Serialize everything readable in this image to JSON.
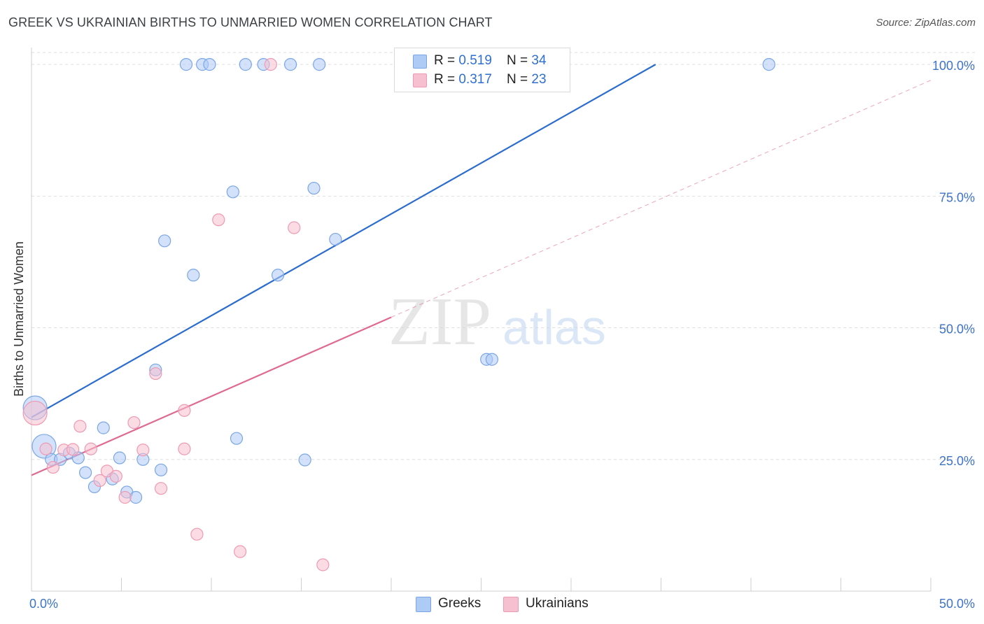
{
  "header": {
    "title": "GREEK VS UKRAINIAN BIRTHS TO UNMARRIED WOMEN CORRELATION CHART",
    "source": "Source: ZipAtlas.com"
  },
  "legend": {
    "greeks": {
      "r_label": "R = ",
      "r_value": "0.519",
      "n_label": "N = ",
      "n_value": "34"
    },
    "ukrainians": {
      "r_label": "R = ",
      "r_value": "0.317",
      "n_label": "N = ",
      "n_value": "23"
    }
  },
  "watermark": {
    "zip": "ZIP",
    "atlas": "atlas"
  },
  "colors": {
    "greeks_fill": "#aecbf5",
    "greeks_stroke": "#7aa6e6",
    "greeks_line": "#2b6ccf",
    "ukrainians_fill": "#f7c0d0",
    "ukrainians_stroke": "#ee9ab2",
    "ukrainians_line": "#e0698f",
    "axis_text": "#3d73c9",
    "grid": "#dedede"
  },
  "chart_data": {
    "type": "scatter",
    "title": "GREEK VS UKRAINIAN BIRTHS TO UNMARRIED WOMEN CORRELATION CHART",
    "xlabel": "",
    "ylabel": "Births to Unmarried Women",
    "xlim": [
      0,
      50
    ],
    "ylim": [
      0,
      104
    ],
    "x_tick_labels": [
      "0.0%",
      "50.0%"
    ],
    "y_ticks": [
      25,
      50,
      75,
      100
    ],
    "y_tick_labels": [
      "25.0%",
      "50.0%",
      "75.0%",
      "100.0%"
    ],
    "legend_position": "top-center",
    "series": [
      {
        "name": "Greeks",
        "r": 0.519,
        "n": 34,
        "points": [
          {
            "x": 0.2,
            "y": 34.8,
            "big": true
          },
          {
            "x": 0.7,
            "y": 27.5,
            "big": true
          },
          {
            "x": 1.1,
            "y": 25.0
          },
          {
            "x": 1.6,
            "y": 25.0
          },
          {
            "x": 2.1,
            "y": 26.2
          },
          {
            "x": 2.6,
            "y": 25.3
          },
          {
            "x": 3.0,
            "y": 22.5
          },
          {
            "x": 3.5,
            "y": 19.8
          },
          {
            "x": 4.0,
            "y": 31.0
          },
          {
            "x": 4.5,
            "y": 21.3
          },
          {
            "x": 4.9,
            "y": 25.3
          },
          {
            "x": 5.3,
            "y": 18.8
          },
          {
            "x": 5.8,
            "y": 17.8
          },
          {
            "x": 6.2,
            "y": 25.0
          },
          {
            "x": 6.9,
            "y": 42.0
          },
          {
            "x": 7.2,
            "y": 23.0
          },
          {
            "x": 7.4,
            "y": 66.5
          },
          {
            "x": 8.6,
            "y": 100.0
          },
          {
            "x": 9.0,
            "y": 60.0
          },
          {
            "x": 9.5,
            "y": 100.0
          },
          {
            "x": 9.9,
            "y": 100.0
          },
          {
            "x": 11.2,
            "y": 75.8
          },
          {
            "x": 11.4,
            "y": 29.0
          },
          {
            "x": 11.9,
            "y": 100.0
          },
          {
            "x": 12.9,
            "y": 100.0
          },
          {
            "x": 13.7,
            "y": 60.0
          },
          {
            "x": 14.4,
            "y": 100.0
          },
          {
            "x": 15.2,
            "y": 24.9
          },
          {
            "x": 15.7,
            "y": 76.5
          },
          {
            "x": 16.0,
            "y": 100.0
          },
          {
            "x": 16.9,
            "y": 66.8
          },
          {
            "x": 25.3,
            "y": 44.0
          },
          {
            "x": 25.6,
            "y": 44.0
          },
          {
            "x": 41.0,
            "y": 100.0
          }
        ],
        "trend": {
          "x0": 0,
          "y0": 33,
          "x1": 34.7,
          "y1": 100
        }
      },
      {
        "name": "Ukrainians",
        "r": 0.317,
        "n": 23,
        "points": [
          {
            "x": 0.2,
            "y": 33.8,
            "big": true
          },
          {
            "x": 0.8,
            "y": 27.0
          },
          {
            "x": 1.2,
            "y": 23.5
          },
          {
            "x": 1.8,
            "y": 26.8
          },
          {
            "x": 2.3,
            "y": 26.9
          },
          {
            "x": 2.7,
            "y": 31.3
          },
          {
            "x": 3.3,
            "y": 27.0
          },
          {
            "x": 3.8,
            "y": 21.0
          },
          {
            "x": 4.2,
            "y": 22.8
          },
          {
            "x": 4.7,
            "y": 21.8
          },
          {
            "x": 5.2,
            "y": 17.8
          },
          {
            "x": 5.7,
            "y": 32.0
          },
          {
            "x": 6.2,
            "y": 26.8
          },
          {
            "x": 6.9,
            "y": 41.3
          },
          {
            "x": 7.2,
            "y": 19.5
          },
          {
            "x": 8.5,
            "y": 34.3
          },
          {
            "x": 8.5,
            "y": 27.0
          },
          {
            "x": 9.2,
            "y": 10.8
          },
          {
            "x": 10.4,
            "y": 70.5
          },
          {
            "x": 11.6,
            "y": 7.5
          },
          {
            "x": 13.3,
            "y": 100.0
          },
          {
            "x": 14.6,
            "y": 69.0
          },
          {
            "x": 16.2,
            "y": 5.0
          }
        ],
        "trend": {
          "x0": 0,
          "y0": 22,
          "x1": 20,
          "y1": 52
        },
        "trend_extension": {
          "x0": 20,
          "y0": 52,
          "x1": 50,
          "y1": 97
        }
      }
    ]
  },
  "bottom_legend": {
    "greeks": "Greeks",
    "ukrainians": "Ukrainians"
  }
}
